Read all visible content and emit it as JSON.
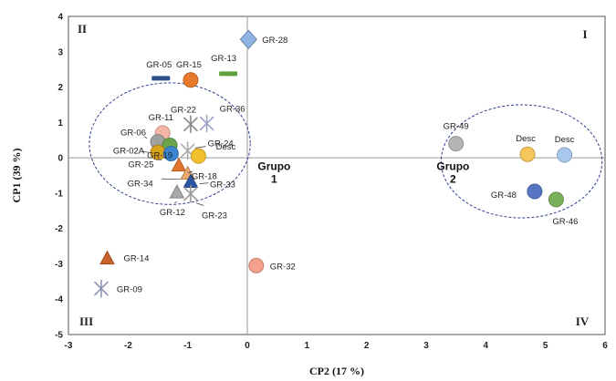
{
  "chart_data": {
    "type": "scatter",
    "title": "",
    "xlabel": "CP2 (17 %)",
    "ylabel": "CP1 (39 %)",
    "xlim": [
      -3,
      6
    ],
    "ylim": [
      -5,
      4
    ],
    "x_ticks": [
      -3,
      -2,
      -1,
      0,
      1,
      2,
      3,
      4,
      5,
      6
    ],
    "y_ticks": [
      -5,
      -4,
      -3,
      -2,
      -1,
      0,
      1,
      2,
      3,
      4
    ],
    "grid": false,
    "legend": "none",
    "quadrants": [
      {
        "label": "I",
        "position": "top-right"
      },
      {
        "label": "II",
        "position": "top-left"
      },
      {
        "label": "III",
        "position": "bottom-left"
      },
      {
        "label": "IV",
        "position": "bottom-right"
      }
    ],
    "groups": [
      {
        "name": "Grupo",
        "number": "1",
        "center": [
          -1.3,
          0.4
        ],
        "radii": [
          1.35,
          1.72
        ],
        "label_at": [
          0.45,
          -0.5
        ]
      },
      {
        "name": "Grupo",
        "number": "2",
        "center": [
          4.6,
          -0.1
        ],
        "radii": [
          1.35,
          1.6
        ],
        "label_at": [
          3.45,
          -0.5
        ]
      }
    ],
    "points": [
      {
        "label": "GR-28",
        "x": 0.02,
        "y": 3.35,
        "marker": "diamond",
        "color": "#8fb4e3"
      },
      {
        "label": "GR-05",
        "x": -1.45,
        "y": 2.25,
        "marker": "dash",
        "color": "#2c4f8a"
      },
      {
        "label": "GR-15",
        "x": -0.95,
        "y": 2.2,
        "marker": "circle",
        "color": "#e8782a"
      },
      {
        "label": "GR-13",
        "x": -0.32,
        "y": 2.38,
        "marker": "dash",
        "color": "#5fa23b"
      },
      {
        "label": "GR-11",
        "x": -1.42,
        "y": 0.7,
        "marker": "circle",
        "color": "#f4b5a4"
      },
      {
        "label": "GR-22",
        "x": -0.95,
        "y": 0.95,
        "marker": "star",
        "color": "#888888"
      },
      {
        "label": "GR-36",
        "x": -0.68,
        "y": 0.97,
        "marker": "star",
        "color": "#9aa0c8"
      },
      {
        "label": "GR-06",
        "x": -1.5,
        "y": 0.45,
        "marker": "circle",
        "color": "#a0a0a0"
      },
      {
        "label": "GR-19",
        "x": -1.3,
        "y": 0.35,
        "marker": "circle",
        "color": "#6ba64a"
      },
      {
        "label": "GR-24",
        "x": -1.0,
        "y": 0.2,
        "marker": "star",
        "color": "#aaaaaa"
      },
      {
        "label": "Desc",
        "x": -0.82,
        "y": 0.05,
        "marker": "circle",
        "color": "#f3c12e"
      },
      {
        "label": "GR-02A",
        "x": -1.5,
        "y": 0.15,
        "marker": "circle",
        "color": "#d9a319"
      },
      {
        "label": "GR-25",
        "x": -1.28,
        "y": 0.12,
        "marker": "circle",
        "color": "#3b86d1"
      },
      {
        "label": "GR-18",
        "x": -1.15,
        "y": -0.22,
        "marker": "triangle",
        "color": "#e0762e"
      },
      {
        "label": "GR-34",
        "x": -1.0,
        "y": -0.45,
        "marker": "triangle",
        "color": "#e8a86a"
      },
      {
        "label": "GR-33",
        "x": -0.95,
        "y": -0.68,
        "marker": "triangle",
        "color": "#2e55a5"
      },
      {
        "label": "GR-12",
        "x": -1.18,
        "y": -0.98,
        "marker": "triangle",
        "color": "#a8a8a8"
      },
      {
        "label": "GR-23",
        "x": -0.95,
        "y": -1.02,
        "marker": "star",
        "color": "#999999"
      },
      {
        "label": "GR-49",
        "x": 3.5,
        "y": 0.4,
        "marker": "circle",
        "color": "#b5b5b5"
      },
      {
        "label": "Desc",
        "x": 4.7,
        "y": 0.1,
        "marker": "circle",
        "color": "#f6c65a"
      },
      {
        "label": "Desc",
        "x": 5.32,
        "y": 0.08,
        "marker": "circle",
        "color": "#a9c8ee"
      },
      {
        "label": "GR-48",
        "x": 4.82,
        "y": -0.95,
        "marker": "circle",
        "color": "#5874c4"
      },
      {
        "label": "GR-46",
        "x": 5.18,
        "y": -1.18,
        "marker": "circle",
        "color": "#7ab05a"
      },
      {
        "label": "GR-32",
        "x": 0.15,
        "y": -3.05,
        "marker": "circle",
        "color": "#f4a08a"
      },
      {
        "label": "GR-14",
        "x": -2.35,
        "y": -2.85,
        "marker": "triangle",
        "color": "#c8622a"
      },
      {
        "label": "GR-09",
        "x": -2.45,
        "y": -3.7,
        "marker": "star",
        "color": "#8d93b5"
      }
    ]
  }
}
